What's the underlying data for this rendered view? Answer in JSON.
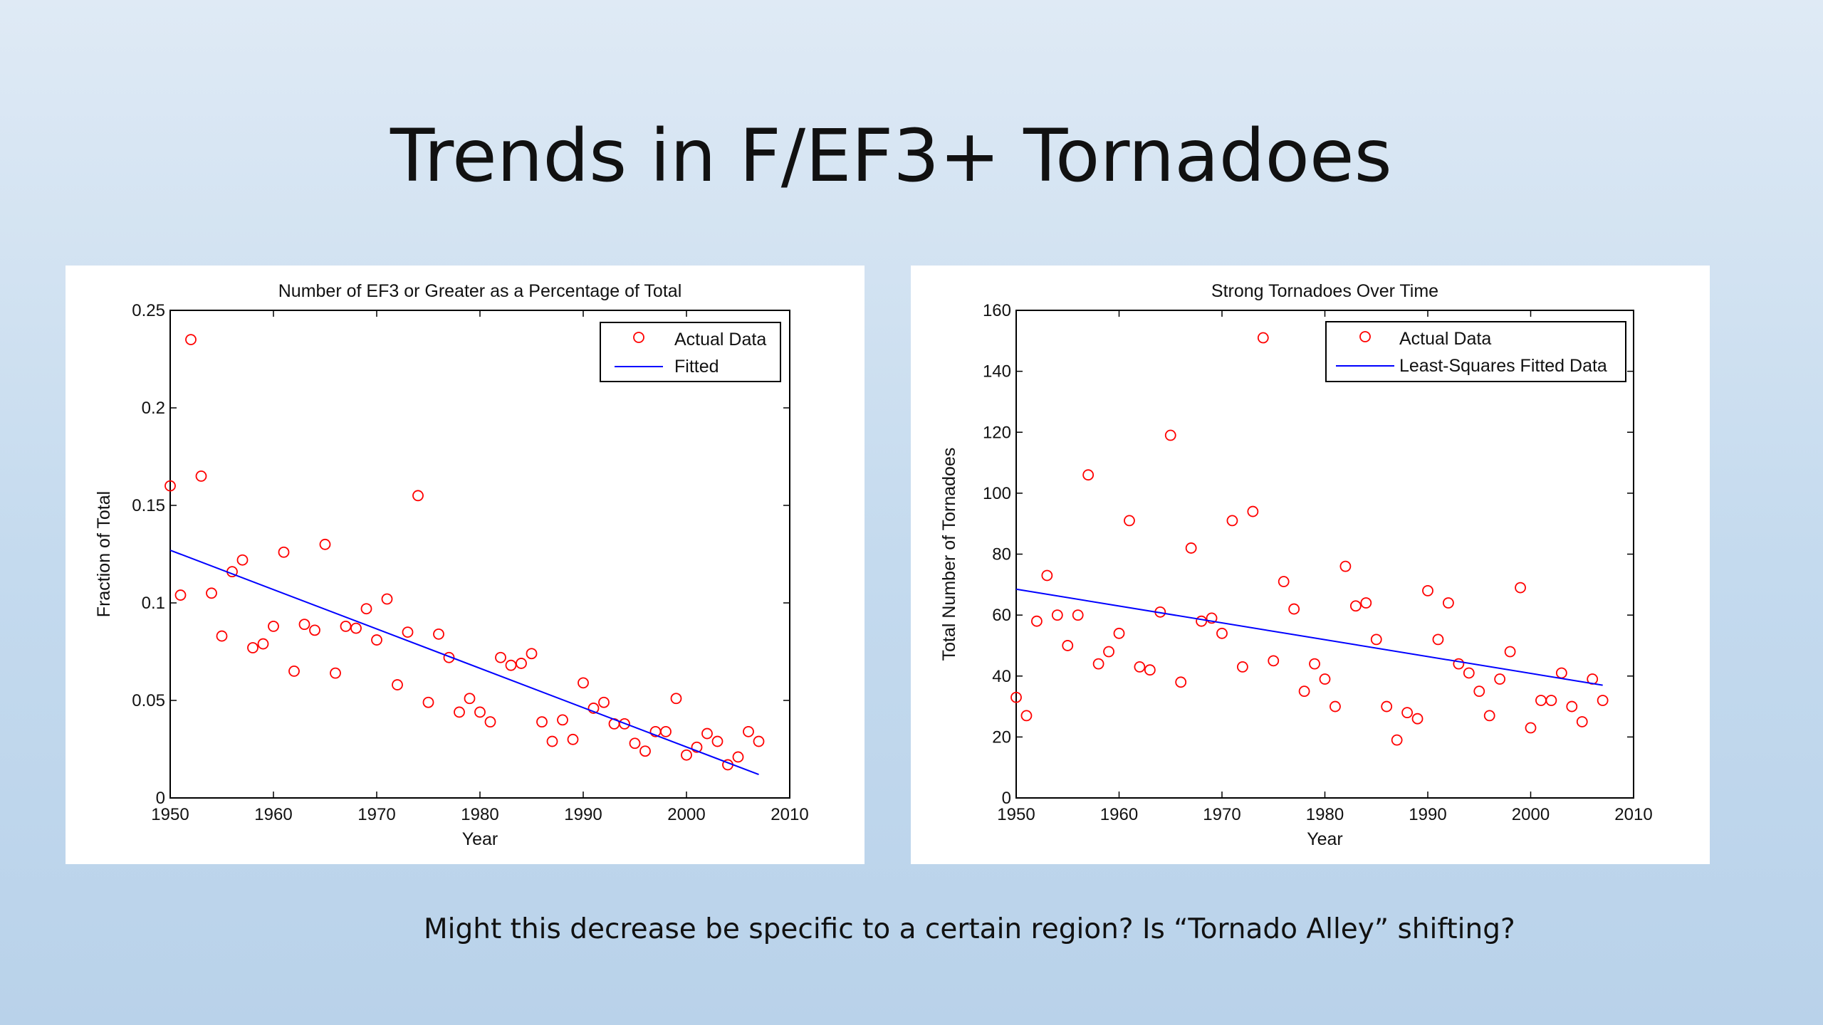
{
  "slide": {
    "title": "Trends in F/EF3+ Tornadoes",
    "caption": "Might this decrease be specific to a certain region? Is “Tornado Alley” shifting?"
  },
  "chart_data": [
    {
      "type": "scatter",
      "title": "Number of EF3 or Greater as a Percentage of Total",
      "xlabel": "Year",
      "ylabel": "Fraction of Total",
      "xlim": [
        1950,
        2010
      ],
      "ylim": [
        0,
        0.25
      ],
      "xticks": [
        1950,
        1960,
        1970,
        1980,
        1990,
        2000,
        2010
      ],
      "xtick_labels": [
        "1950",
        "1960",
        "1970",
        "1980",
        "1990",
        "2000",
        "2010"
      ],
      "yticks": [
        0,
        0.05,
        0.1,
        0.15,
        0.2,
        0.25
      ],
      "ytick_labels": [
        "0",
        "0.05",
        "0.1",
        "0.15",
        "0.2",
        "0.25"
      ],
      "grid": false,
      "legend_position": "top-right",
      "series": [
        {
          "name": "Actual Data",
          "marker": "circle",
          "color": "#ff0000",
          "x": [
            1950,
            1951,
            1952,
            1953,
            1954,
            1955,
            1956,
            1957,
            1958,
            1959,
            1960,
            1961,
            1962,
            1963,
            1964,
            1965,
            1966,
            1967,
            1968,
            1969,
            1970,
            1971,
            1972,
            1973,
            1974,
            1975,
            1976,
            1977,
            1978,
            1979,
            1980,
            1981,
            1982,
            1983,
            1984,
            1985,
            1986,
            1987,
            1988,
            1989,
            1990,
            1991,
            1992,
            1993,
            1994,
            1995,
            1996,
            1997,
            1998,
            1999,
            2000,
            2001,
            2002,
            2003,
            2004,
            2005,
            2006,
            2007
          ],
          "y": [
            0.16,
            0.104,
            0.235,
            0.165,
            0.105,
            0.083,
            0.116,
            0.122,
            0.077,
            0.079,
            0.088,
            0.126,
            0.065,
            0.089,
            0.086,
            0.13,
            0.064,
            0.088,
            0.087,
            0.097,
            0.081,
            0.102,
            0.058,
            0.085,
            0.155,
            0.049,
            0.084,
            0.072,
            0.044,
            0.051,
            0.044,
            0.039,
            0.072,
            0.068,
            0.069,
            0.074,
            0.039,
            0.029,
            0.04,
            0.03,
            0.059,
            0.046,
            0.049,
            0.038,
            0.038,
            0.028,
            0.024,
            0.034,
            0.034,
            0.051,
            0.022,
            0.026,
            0.033,
            0.029,
            0.017,
            0.021,
            0.034,
            0.029
          ]
        },
        {
          "name": "Fitted",
          "line": "solid",
          "color": "#0000ff",
          "x": [
            1950,
            2007
          ],
          "y": [
            0.127,
            0.012
          ]
        }
      ]
    },
    {
      "type": "scatter",
      "title": "Strong Tornadoes Over Time",
      "xlabel": "Year",
      "ylabel": "Total Number of Tornadoes",
      "xlim": [
        1950,
        2010
      ],
      "ylim": [
        0,
        160
      ],
      "xticks": [
        1950,
        1960,
        1970,
        1980,
        1990,
        2000,
        2010
      ],
      "xtick_labels": [
        "1950",
        "1960",
        "1970",
        "1980",
        "1990",
        "2000",
        "2010"
      ],
      "yticks": [
        0,
        20,
        40,
        60,
        80,
        100,
        120,
        140,
        160
      ],
      "ytick_labels": [
        "0",
        "20",
        "40",
        "60",
        "80",
        "100",
        "120",
        "140",
        "160"
      ],
      "grid": false,
      "legend_position": "top-right",
      "series": [
        {
          "name": "Actual Data",
          "marker": "circle",
          "color": "#ff0000",
          "x": [
            1950,
            1951,
            1952,
            1953,
            1954,
            1955,
            1956,
            1957,
            1958,
            1959,
            1960,
            1961,
            1962,
            1963,
            1964,
            1965,
            1966,
            1967,
            1968,
            1969,
            1970,
            1971,
            1972,
            1973,
            1974,
            1975,
            1976,
            1977,
            1978,
            1979,
            1980,
            1981,
            1982,
            1983,
            1984,
            1985,
            1986,
            1987,
            1988,
            1989,
            1990,
            1991,
            1992,
            1993,
            1994,
            1995,
            1996,
            1997,
            1998,
            1999,
            2000,
            2001,
            2002,
            2003,
            2004,
            2005,
            2006,
            2007
          ],
          "y": [
            33,
            27,
            58,
            73,
            60,
            50,
            60,
            106,
            44,
            48,
            54,
            91,
            43,
            42,
            61,
            119,
            38,
            82,
            58,
            59,
            54,
            91,
            43,
            94,
            151,
            45,
            71,
            62,
            35,
            44,
            39,
            30,
            76,
            63,
            64,
            52,
            30,
            19,
            28,
            26,
            68,
            52,
            64,
            44,
            41,
            35,
            27,
            39,
            48,
            69,
            23,
            32,
            32,
            41,
            30,
            25,
            39,
            32
          ]
        },
        {
          "name": "Least-Squares Fitted Data",
          "line": "solid",
          "color": "#0000ff",
          "x": [
            1950,
            2007
          ],
          "y": [
            68.5,
            37
          ]
        }
      ]
    }
  ]
}
